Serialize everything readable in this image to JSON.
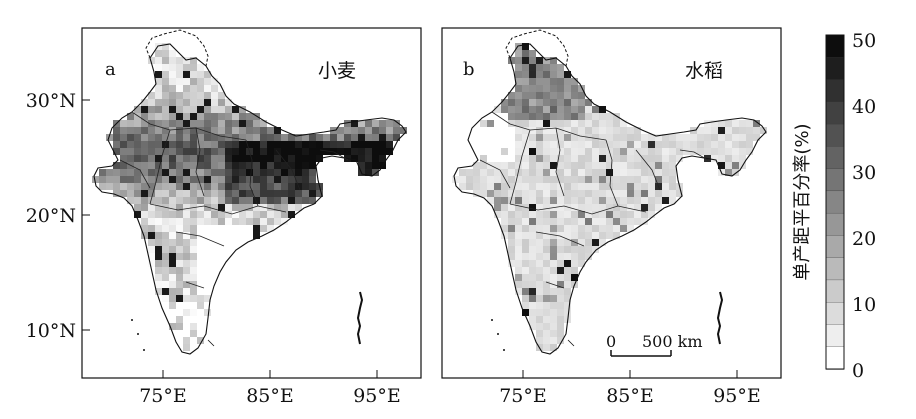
{
  "panels": [
    {
      "letter": "a",
      "name": "小麦"
    },
    {
      "letter": "b",
      "name": "水稻"
    }
  ],
  "axes": {
    "x_ticks": [
      "75°E",
      "85°E",
      "95°E"
    ],
    "y_ticks": [
      "30°N",
      "20°N",
      "10°N"
    ]
  },
  "scale_bar": {
    "start": "0",
    "end": "500 km"
  },
  "colorbar": {
    "title": "单产距平百分率(%)",
    "ticks": [
      "50",
      "40",
      "30",
      "20",
      "10",
      "0"
    ],
    "steps": 15,
    "min": 0,
    "max": 50
  },
  "colors": {
    "low": "#ffffff",
    "high": "#0d0d0d",
    "outline": "#111111"
  }
}
